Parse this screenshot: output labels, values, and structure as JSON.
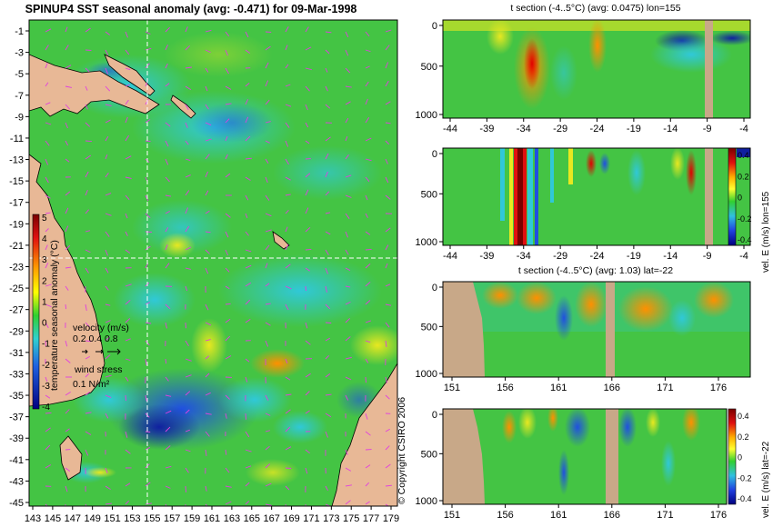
{
  "main_map": {
    "title": "SPINUP4 SST seasonal anomaly (avg: -0.471) for 09-Mar-1998",
    "y_ticks": [
      "-1",
      "-3",
      "-5",
      "-7",
      "-9",
      "-11",
      "-13",
      "-15",
      "-17",
      "-19",
      "-21",
      "-23",
      "-25",
      "-27",
      "-29",
      "-31",
      "-33",
      "-35",
      "-37",
      "-39",
      "-41",
      "-43",
      "-45"
    ],
    "x_ticks": [
      "143",
      "145",
      "147",
      "149",
      "151",
      "153",
      "155",
      "157",
      "159",
      "161",
      "163",
      "165",
      "167",
      "169",
      "171",
      "173",
      "175",
      "177",
      "179"
    ],
    "colorbar": {
      "label": "temperature seasonal anomaly (°C)",
      "ticks": [
        "5",
        "4",
        "3",
        "2",
        "1",
        "0",
        "-1",
        "-2",
        "-3",
        "-4"
      ],
      "range": [
        -4,
        5
      ]
    },
    "velocity_legend": {
      "label": "velocity (m/s)",
      "scale": "0.2 0.4 0.8"
    },
    "wind_legend": {
      "label": "wind stress",
      "scale": "0.1 N/m²"
    },
    "copyright": "© Copyright CSIRO 2006",
    "section_lon": 155,
    "section_lat": -22
  },
  "panels": [
    {
      "title": "t section (-4..5°C) (avg: 0.0475) lon=155",
      "y_ticks": [
        "0",
        "500",
        "1000"
      ],
      "x_ticks": [
        "-44",
        "-39",
        "-34",
        "-29",
        "-24",
        "-19",
        "-14",
        "-9",
        "-4"
      ],
      "side_label": ""
    },
    {
      "title": "",
      "y_ticks": [
        "0",
        "500",
        "1000"
      ],
      "x_ticks": [
        "-44",
        "-39",
        "-34",
        "-29",
        "-24",
        "-19",
        "-14",
        "-9",
        "-4"
      ],
      "side_label": "vel. E (m/s) lon=155",
      "colorbar_ticks": [
        "0.4",
        "0.2",
        "0",
        "-0.2",
        "-0.4"
      ]
    },
    {
      "title": "t section (-4..5°C) (avg: 1.03) lat=-22",
      "y_ticks": [
        "0",
        "500",
        "1000"
      ],
      "x_ticks": [
        "151",
        "156",
        "161",
        "166",
        "171",
        "176"
      ],
      "side_label": ""
    },
    {
      "title": "",
      "y_ticks": [
        "0",
        "500",
        "1000"
      ],
      "x_ticks": [
        "151",
        "156",
        "161",
        "166",
        "171",
        "176"
      ],
      "side_label": "vel. E (m/s) lat=-22",
      "colorbar_ticks": [
        "0.4",
        "0.2",
        "0",
        "-0.2",
        "-0.4"
      ]
    }
  ],
  "chart_data": [
    {
      "type": "heatmap",
      "title": "SPINUP4 SST seasonal anomaly (avg: -0.471) for 09-Mar-1998",
      "xlabel": "",
      "ylabel": "",
      "xlim": [
        143,
        179
      ],
      "ylim": [
        -45,
        -1
      ],
      "colorbar_label": "temperature seasonal anomaly (°C)",
      "zlim": [
        -4,
        5
      ]
    },
    {
      "type": "heatmap",
      "title": "t section (-4..5°C) (avg: 0.0475) lon=155",
      "xlim": [
        -44,
        -4
      ],
      "ylim": [
        1000,
        0
      ]
    },
    {
      "type": "heatmap",
      "title": "",
      "colorbar_label": "vel. E (m/s) lon=155",
      "xlim": [
        -44,
        -4
      ],
      "ylim": [
        1000,
        0
      ],
      "zlim": [
        -0.4,
        0.4
      ]
    },
    {
      "type": "heatmap",
      "title": "t section (-4..5°C) (avg: 1.03) lat=-22",
      "xlim": [
        151,
        179
      ],
      "ylim": [
        1000,
        0
      ]
    },
    {
      "type": "heatmap",
      "title": "",
      "colorbar_label": "vel. E (m/s) lat=-22",
      "xlim": [
        151,
        179
      ],
      "ylim": [
        1000,
        0
      ],
      "zlim": [
        -0.4,
        0.4
      ]
    }
  ],
  "colors": {
    "land": "#e8b896",
    "section_land": "#c8a888",
    "ocean_base": "#40c040",
    "vector": "#e040e0"
  }
}
